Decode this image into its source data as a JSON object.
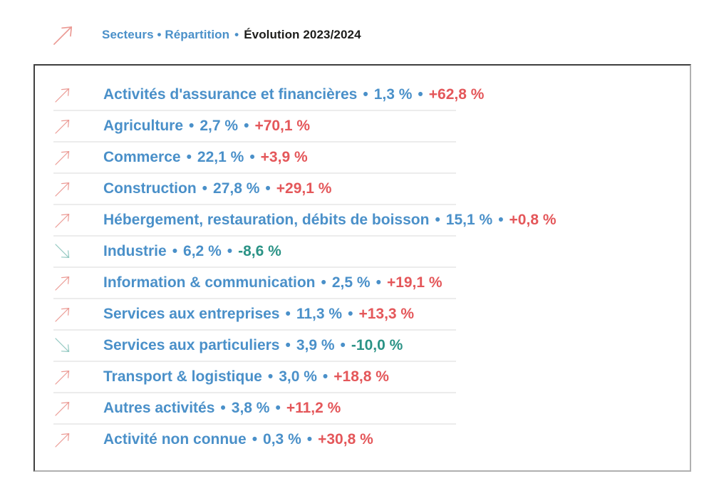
{
  "colors": {
    "blue": "#4a90c9",
    "dark": "#1d1d1b",
    "red": "#e4575a",
    "green": "#2b9386",
    "arrow_up": "#eb9a94",
    "arrow_down": "#92c8c1",
    "divider": "#ececec",
    "border_dark": "#3f3f3f",
    "border_light": "#b0b0b0"
  },
  "header": {
    "breadcrumb_blue": "Secteurs • Répartition",
    "bullet": "•",
    "breadcrumb_dark": "Évolution 2023/2024"
  },
  "list": {
    "bullet": "•",
    "rows": [
      {
        "sector": "Activités d'assurance et financières",
        "share": "1,3 %",
        "evolution": "+62,8 %",
        "trend": "up"
      },
      {
        "sector": "Agriculture",
        "share": "2,7 %",
        "evolution": "+70,1 %",
        "trend": "up"
      },
      {
        "sector": "Commerce",
        "share": "22,1 %",
        "evolution": "+3,9 %",
        "trend": "up"
      },
      {
        "sector": "Construction",
        "share": "27,8 %",
        "evolution": "+29,1 %",
        "trend": "up"
      },
      {
        "sector": "Hébergement, restauration, débits de boisson",
        "share": "15,1 %",
        "evolution": "+0,8 %",
        "trend": "up"
      },
      {
        "sector": "Industrie",
        "share": "6,2 %",
        "evolution": "-8,6 %",
        "trend": "down"
      },
      {
        "sector": "Information & communication",
        "share": "2,5 %",
        "evolution": "+19,1 %",
        "trend": "up"
      },
      {
        "sector": "Services aux entreprises",
        "share": "11,3 %",
        "evolution": "+13,3 %",
        "trend": "up"
      },
      {
        "sector": "Services aux particuliers",
        "share": "3,9 %",
        "evolution": "-10,0 %",
        "trend": "down"
      },
      {
        "sector": "Transport & logistique",
        "share": "3,0 %",
        "evolution": "+18,8 %",
        "trend": "up"
      },
      {
        "sector": "Autres activités",
        "share": "3,8 %",
        "evolution": "+11,2 %",
        "trend": "up"
      },
      {
        "sector": "Activité non connue",
        "share": "0,3 %",
        "evolution": "+30,8 %",
        "trend": "up"
      }
    ]
  },
  "chart_data": {
    "type": "table",
    "title": "Secteurs • Répartition • Évolution 2023/2024",
    "categories": [
      "Activités d'assurance et financières",
      "Agriculture",
      "Commerce",
      "Construction",
      "Hébergement, restauration, débits de boisson",
      "Industrie",
      "Information & communication",
      "Services aux entreprises",
      "Services aux particuliers",
      "Transport & logistique",
      "Autres activités",
      "Activité non connue"
    ],
    "series": [
      {
        "name": "Répartition (%)",
        "values": [
          1.3,
          2.7,
          22.1,
          27.8,
          15.1,
          6.2,
          2.5,
          11.3,
          3.9,
          3.0,
          3.8,
          0.3
        ]
      },
      {
        "name": "Évolution 2023/2024 (%)",
        "values": [
          62.8,
          70.1,
          3.9,
          29.1,
          0.8,
          -8.6,
          19.1,
          13.3,
          -10.0,
          18.8,
          11.2,
          30.8
        ]
      }
    ],
    "trend_direction": [
      "up",
      "up",
      "up",
      "up",
      "up",
      "down",
      "up",
      "up",
      "down",
      "up",
      "up",
      "up"
    ]
  }
}
